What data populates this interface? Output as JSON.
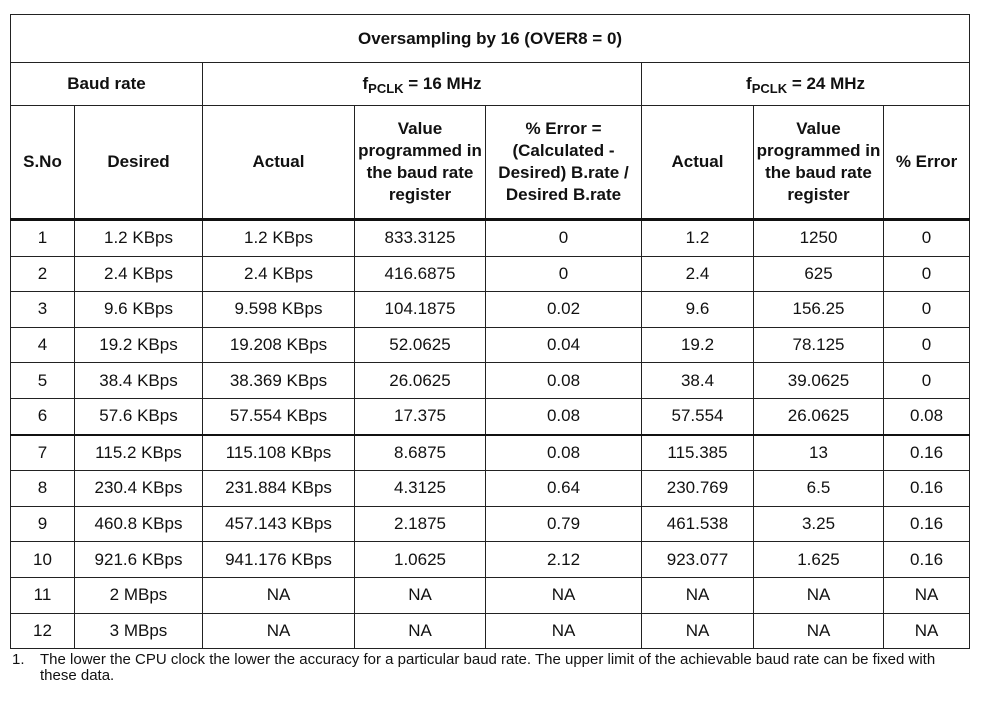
{
  "table": {
    "title": "Oversampling by 16 (OVER8 = 0)",
    "groups": {
      "baud_rate": "Baud rate",
      "f16_prefix": "f",
      "f16_sub": "PCLK",
      "f16_suffix": " = 16 MHz",
      "f24_prefix": "f",
      "f24_sub": "PCLK",
      "f24_suffix": " = 24 MHz"
    },
    "columns": {
      "sno": "S.No",
      "desired": "Desired",
      "actual16": "Actual",
      "value16": "Value programmed in the baud rate register",
      "error16": "% Error = (Calculated - Desired) B.rate / Desired B.rate",
      "actual24": "Actual",
      "value24": "Value programmed in the baud rate register",
      "error24": "% Error"
    },
    "rows": [
      [
        "1",
        "1.2 KBps",
        "1.2 KBps",
        "833.3125",
        "0",
        "1.2",
        "1250",
        "0"
      ],
      [
        "2",
        "2.4 KBps",
        "2.4 KBps",
        "416.6875",
        "0",
        "2.4",
        "625",
        "0"
      ],
      [
        "3",
        "9.6 KBps",
        "9.598 KBps",
        "104.1875",
        "0.02",
        "9.6",
        "156.25",
        "0"
      ],
      [
        "4",
        "19.2 KBps",
        "19.208 KBps",
        "52.0625",
        "0.04",
        "19.2",
        "78.125",
        "0"
      ],
      [
        "5",
        "38.4 KBps",
        "38.369 KBps",
        "26.0625",
        "0.08",
        "38.4",
        "39.0625",
        "0"
      ],
      [
        "6",
        "57.6 KBps",
        "57.554 KBps",
        "17.375",
        "0.08",
        "57.554",
        "26.0625",
        "0.08"
      ],
      [
        "7",
        "115.2 KBps",
        "115.108 KBps",
        "8.6875",
        "0.08",
        "115.385",
        "13",
        "0.16"
      ],
      [
        "8",
        "230.4 KBps",
        "231.884 KBps",
        "4.3125",
        "0.64",
        "230.769",
        "6.5",
        "0.16"
      ],
      [
        "9",
        "460.8 KBps",
        "457.143 KBps",
        "2.1875",
        "0.79",
        "461.538",
        "3.25",
        "0.16"
      ],
      [
        "10",
        "921.6 KBps",
        "941.176 KBps",
        "1.0625",
        "2.12",
        "923.077",
        "1.625",
        "0.16"
      ],
      [
        "11",
        "2 MBps",
        "NA",
        "NA",
        "NA",
        "NA",
        "NA",
        "NA"
      ],
      [
        "12",
        "3 MBps",
        "NA",
        "NA",
        "NA",
        "NA",
        "NA",
        "NA"
      ]
    ]
  },
  "footnote": {
    "number": "1.",
    "text": "The lower the CPU clock the lower the accuracy for a particular baud rate. The upper limit of the achievable baud rate can be fixed with these data."
  }
}
